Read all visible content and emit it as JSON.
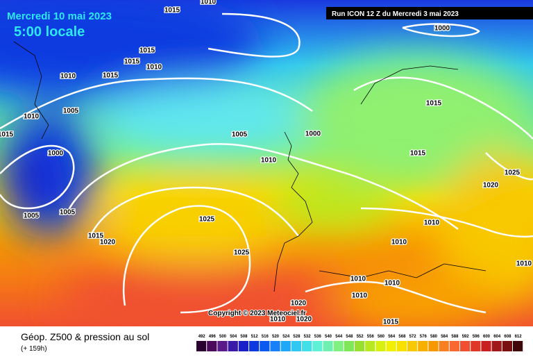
{
  "header": {
    "date": "Mercredi 10 mai 2023",
    "time": "5:00 locale",
    "run": "Run ICON 12 Z du Mercredi 3 mai 2023"
  },
  "isobar_labels": [
    1015,
    1010,
    1000,
    1015,
    1015,
    1010,
    1010,
    1015,
    1005,
    1010,
    1015,
    1005,
    1000,
    1000,
    1015,
    1015,
    1010,
    1025,
    1020,
    1005,
    1005,
    1025,
    1015,
    1020,
    1010,
    1010,
    1025,
    1010,
    1010,
    1010,
    1020,
    1010,
    1020,
    1015,
    1010
  ],
  "copyright": "Copyright © 2023 Meteociel.fr",
  "footer": {
    "title": "Géop. Z500 & pression au sol",
    "step": "(+ 159h)"
  },
  "legend": {
    "values": [
      492,
      496,
      500,
      504,
      508,
      512,
      516,
      520,
      524,
      528,
      532,
      536,
      540,
      544,
      548,
      552,
      556,
      560,
      564,
      568,
      572,
      576,
      580,
      584,
      588,
      592,
      596,
      600,
      604,
      608,
      612
    ],
    "colors": [
      "#2a0030",
      "#4b0a5a",
      "#5a1a8a",
      "#3a1aa8",
      "#1a20c8",
      "#0a3ae0",
      "#0a5af0",
      "#1a80f8",
      "#20a8f8",
      "#30c8f0",
      "#40e0e8",
      "#60f0d8",
      "#70f0b0",
      "#80f080",
      "#80e858",
      "#98e030",
      "#b8e820",
      "#d8f010",
      "#f0f000",
      "#f8e000",
      "#f8c800",
      "#f8b000",
      "#f89800",
      "#f88020",
      "#f86830",
      "#f05030",
      "#e03828",
      "#c82020",
      "#a01818",
      "#781010",
      "#400808"
    ]
  }
}
